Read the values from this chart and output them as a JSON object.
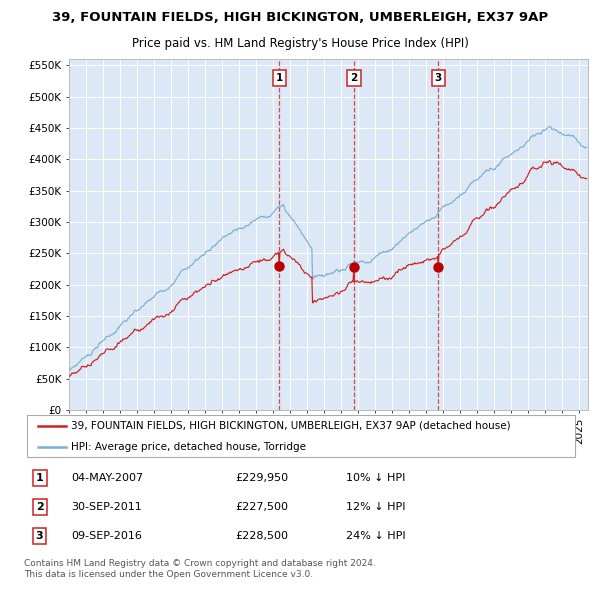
{
  "title_line1": "39, FOUNTAIN FIELDS, HIGH BICKINGTON, UMBERLEIGH, EX37 9AP",
  "title_line2": "Price paid vs. HM Land Registry's House Price Index (HPI)",
  "legend_property": "39, FOUNTAIN FIELDS, HIGH BICKINGTON, UMBERLEIGH, EX37 9AP (detached house)",
  "legend_hpi": "HPI: Average price, detached house, Torridge",
  "transactions": [
    {
      "label": "1",
      "date": "04-MAY-2007",
      "date_num": 2007.35,
      "price": 229950,
      "pct": "10%",
      "dir": "↓"
    },
    {
      "label": "2",
      "date": "30-SEP-2011",
      "date_num": 2011.75,
      "price": 227500,
      "pct": "12%",
      "dir": "↓"
    },
    {
      "label": "3",
      "date": "09-SEP-2016",
      "date_num": 2016.69,
      "price": 228500,
      "pct": "24%",
      "dir": "↓"
    }
  ],
  "ylabel_ticks": [
    "£0",
    "£50K",
    "£100K",
    "£150K",
    "£200K",
    "£250K",
    "£300K",
    "£350K",
    "£400K",
    "£450K",
    "£500K",
    "£550K"
  ],
  "ytick_vals": [
    0,
    50000,
    100000,
    150000,
    200000,
    250000,
    300000,
    350000,
    400000,
    450000,
    500000,
    550000
  ],
  "ylim": [
    0,
    560000
  ],
  "xlim_start": 1995.0,
  "xlim_end": 2025.5,
  "background_color": "#ffffff",
  "plot_bg_color": "#dce8f5",
  "grid_color": "#ffffff",
  "hpi_line_color": "#7ab0d4",
  "property_line_color": "#cc2222",
  "dot_color": "#bb0000",
  "vline_color": "#cc3333",
  "footer_text": "Contains HM Land Registry data © Crown copyright and database right 2024.\nThis data is licensed under the Open Government Licence v3.0.",
  "title_fontsize": 9.5,
  "subtitle_fontsize": 8.5,
  "tick_fontsize": 7.5,
  "legend_fontsize": 7.5,
  "table_fontsize": 8.0,
  "footer_fontsize": 6.5
}
